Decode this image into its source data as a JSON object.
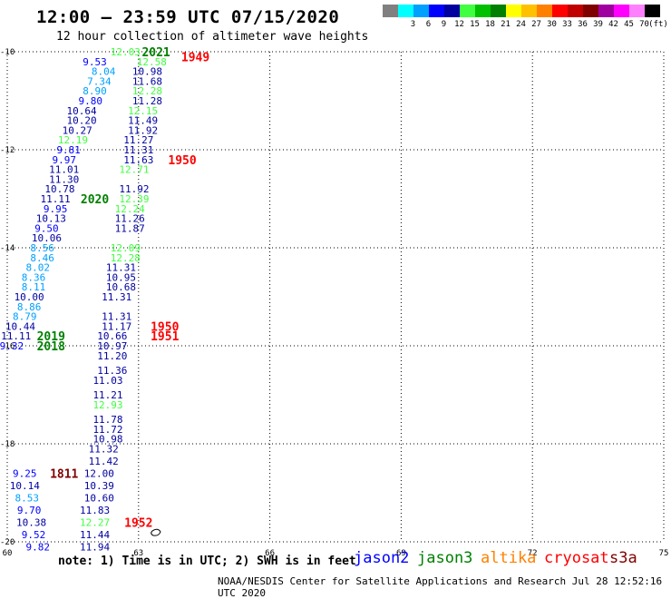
{
  "header": {
    "title": "12:00 – 23:59 UTC 07/15/2020",
    "subtitle": "12 hour collection of altimeter wave heights"
  },
  "legend": {
    "items": [
      {
        "label": "",
        "color": "#808080"
      },
      {
        "label": "3",
        "color": "#00ffff"
      },
      {
        "label": "6",
        "color": "#00a0ff"
      },
      {
        "label": "9",
        "color": "#0000ff"
      },
      {
        "label": "12",
        "color": "#0000a0"
      },
      {
        "label": "15",
        "color": "#40ff40"
      },
      {
        "label": "18",
        "color": "#00c000"
      },
      {
        "label": "21",
        "color": "#008000"
      },
      {
        "label": "24",
        "color": "#ffff00"
      },
      {
        "label": "27",
        "color": "#ffc000"
      },
      {
        "label": "30",
        "color": "#ff8000"
      },
      {
        "label": "33",
        "color": "#ff0000"
      },
      {
        "label": "36",
        "color": "#c00000"
      },
      {
        "label": "39",
        "color": "#800000"
      },
      {
        "label": "42",
        "color": "#a000a0"
      },
      {
        "label": "45",
        "color": "#ff00ff"
      },
      {
        "label": "70",
        "color": "#ff80ff"
      },
      {
        "label": "",
        "color": "#000000"
      }
    ],
    "unit": "(ft)"
  },
  "chart_data": {
    "type": "scatter",
    "xlim": [
      60,
      75
    ],
    "ylim": [
      -20,
      -10
    ],
    "x_ticks": [
      "60",
      "63",
      "66",
      "69",
      "72",
      "75"
    ],
    "y_ticks": [
      "-10",
      "-12",
      "-14",
      "-16",
      "-18",
      "-20"
    ],
    "grid": true,
    "points": [
      {
        "x": 62.7,
        "y": -10.0,
        "label": "12.03",
        "color": "#40ff40"
      },
      {
        "x": 62.0,
        "y": -10.2,
        "label": "9.53",
        "color": "#0000ff"
      },
      {
        "x": 63.3,
        "y": -10.2,
        "label": "12.58",
        "color": "#40ff40"
      },
      {
        "x": 62.2,
        "y": -10.4,
        "label": "8.04",
        "color": "#00a0ff"
      },
      {
        "x": 63.2,
        "y": -10.4,
        "label": "10.98",
        "color": "#0000a0"
      },
      {
        "x": 62.1,
        "y": -10.6,
        "label": "7.34",
        "color": "#00a0ff"
      },
      {
        "x": 63.2,
        "y": -10.6,
        "label": "11.68",
        "color": "#0000a0"
      },
      {
        "x": 62.0,
        "y": -10.8,
        "label": "8.90",
        "color": "#00a0ff"
      },
      {
        "x": 63.2,
        "y": -10.8,
        "label": "12.28",
        "color": "#40ff40"
      },
      {
        "x": 61.9,
        "y": -11.0,
        "label": "9.80",
        "color": "#0000ff"
      },
      {
        "x": 63.2,
        "y": -11.0,
        "label": "11.28",
        "color": "#0000a0"
      },
      {
        "x": 61.7,
        "y": -11.2,
        "label": "10.64",
        "color": "#0000a0"
      },
      {
        "x": 63.1,
        "y": -11.2,
        "label": "12.15",
        "color": "#40ff40"
      },
      {
        "x": 61.7,
        "y": -11.4,
        "label": "10.20",
        "color": "#0000a0"
      },
      {
        "x": 63.1,
        "y": -11.4,
        "label": "11.49",
        "color": "#0000a0"
      },
      {
        "x": 61.6,
        "y": -11.6,
        "label": "10.27",
        "color": "#0000a0"
      },
      {
        "x": 63.1,
        "y": -11.6,
        "label": "11.92",
        "color": "#0000a0"
      },
      {
        "x": 61.5,
        "y": -11.8,
        "label": "12.19",
        "color": "#40ff40"
      },
      {
        "x": 63.0,
        "y": -11.8,
        "label": "11.27",
        "color": "#0000a0"
      },
      {
        "x": 61.4,
        "y": -12.0,
        "label": "9.81",
        "color": "#0000ff"
      },
      {
        "x": 63.0,
        "y": -12.0,
        "label": "11.31",
        "color": "#0000a0"
      },
      {
        "x": 61.3,
        "y": -12.2,
        "label": "9.97",
        "color": "#0000ff"
      },
      {
        "x": 63.0,
        "y": -12.2,
        "label": "11.63",
        "color": "#0000a0"
      },
      {
        "x": 61.3,
        "y": -12.4,
        "label": "11.01",
        "color": "#0000a0"
      },
      {
        "x": 62.9,
        "y": -12.4,
        "label": "12.71",
        "color": "#40ff40"
      },
      {
        "x": 61.3,
        "y": -12.6,
        "label": "11.30",
        "color": "#0000a0"
      },
      {
        "x": 61.2,
        "y": -12.8,
        "label": "10.78",
        "color": "#0000a0"
      },
      {
        "x": 62.9,
        "y": -12.8,
        "label": "11.92",
        "color": "#0000a0"
      },
      {
        "x": 61.1,
        "y": -13.0,
        "label": "11.11",
        "color": "#0000a0"
      },
      {
        "x": 62.9,
        "y": -13.0,
        "label": "12.39",
        "color": "#40ff40"
      },
      {
        "x": 61.1,
        "y": -13.2,
        "label": "9.95",
        "color": "#0000ff"
      },
      {
        "x": 62.8,
        "y": -13.2,
        "label": "12.24",
        "color": "#40ff40"
      },
      {
        "x": 61.0,
        "y": -13.4,
        "label": "10.13",
        "color": "#0000a0"
      },
      {
        "x": 62.8,
        "y": -13.4,
        "label": "11.26",
        "color": "#0000a0"
      },
      {
        "x": 60.9,
        "y": -13.6,
        "label": "9.50",
        "color": "#0000ff"
      },
      {
        "x": 62.8,
        "y": -13.6,
        "label": "11.87",
        "color": "#0000a0"
      },
      {
        "x": 60.9,
        "y": -13.8,
        "label": "10.06",
        "color": "#0000a0"
      },
      {
        "x": 60.8,
        "y": -14.0,
        "label": "8.56",
        "color": "#00a0ff"
      },
      {
        "x": 62.7,
        "y": -14.0,
        "label": "12.09",
        "color": "#40ff40"
      },
      {
        "x": 60.8,
        "y": -14.2,
        "label": "8.46",
        "color": "#00a0ff"
      },
      {
        "x": 62.7,
        "y": -14.2,
        "label": "12.28",
        "color": "#40ff40"
      },
      {
        "x": 60.7,
        "y": -14.4,
        "label": "8.02",
        "color": "#00a0ff"
      },
      {
        "x": 62.6,
        "y": -14.4,
        "label": "11.31",
        "color": "#0000a0"
      },
      {
        "x": 60.6,
        "y": -14.6,
        "label": "8.36",
        "color": "#00a0ff"
      },
      {
        "x": 62.6,
        "y": -14.6,
        "label": "10.95",
        "color": "#0000a0"
      },
      {
        "x": 60.6,
        "y": -14.8,
        "label": "8.11",
        "color": "#00a0ff"
      },
      {
        "x": 62.6,
        "y": -14.8,
        "label": "10.68",
        "color": "#0000a0"
      },
      {
        "x": 60.5,
        "y": -15.0,
        "label": "10.00",
        "color": "#0000a0"
      },
      {
        "x": 62.5,
        "y": -15.0,
        "label": "11.31",
        "color": "#0000a0"
      },
      {
        "x": 60.5,
        "y": -15.2,
        "label": "8.86",
        "color": "#00a0ff"
      },
      {
        "x": 60.4,
        "y": -15.4,
        "label": "8.79",
        "color": "#00a0ff"
      },
      {
        "x": 62.5,
        "y": -15.4,
        "label": "11.31",
        "color": "#0000a0"
      },
      {
        "x": 60.3,
        "y": -15.6,
        "label": "10.44",
        "color": "#0000a0"
      },
      {
        "x": 62.5,
        "y": -15.6,
        "label": "11.17",
        "color": "#0000a0"
      },
      {
        "x": 60.2,
        "y": -15.8,
        "label": "11.11",
        "color": "#0000a0"
      },
      {
        "x": 62.4,
        "y": -15.8,
        "label": "10.66",
        "color": "#0000a0"
      },
      {
        "x": 60.1,
        "y": -16.0,
        "label": "9.32",
        "color": "#0000ff"
      },
      {
        "x": 62.4,
        "y": -16.0,
        "label": "10.97",
        "color": "#0000a0"
      },
      {
        "x": 62.4,
        "y": -16.2,
        "label": "11.20",
        "color": "#0000a0"
      },
      {
        "x": 62.4,
        "y": -16.5,
        "label": "11.36",
        "color": "#0000a0"
      },
      {
        "x": 62.3,
        "y": -16.7,
        "label": "11.03",
        "color": "#0000a0"
      },
      {
        "x": 62.3,
        "y": -17.0,
        "label": "11.21",
        "color": "#0000a0"
      },
      {
        "x": 62.3,
        "y": -17.2,
        "label": "12.93",
        "color": "#40ff40"
      },
      {
        "x": 62.3,
        "y": -17.5,
        "label": "11.78",
        "color": "#0000a0"
      },
      {
        "x": 62.3,
        "y": -17.7,
        "label": "11.72",
        "color": "#0000a0"
      },
      {
        "x": 62.3,
        "y": -17.9,
        "label": "10.98",
        "color": "#0000a0"
      },
      {
        "x": 62.2,
        "y": -18.1,
        "label": "11.32",
        "color": "#0000a0"
      },
      {
        "x": 62.2,
        "y": -18.35,
        "label": "11.42",
        "color": "#0000a0"
      },
      {
        "x": 60.4,
        "y": -18.6,
        "label": "9.25",
        "color": "#0000ff"
      },
      {
        "x": 62.1,
        "y": -18.6,
        "label": "12.00",
        "color": "#0000a0"
      },
      {
        "x": 60.4,
        "y": -18.85,
        "label": "10.14",
        "color": "#0000a0"
      },
      {
        "x": 62.1,
        "y": -18.85,
        "label": "10.39",
        "color": "#0000a0"
      },
      {
        "x": 60.45,
        "y": -19.1,
        "label": "8.53",
        "color": "#00a0ff"
      },
      {
        "x": 62.1,
        "y": -19.1,
        "label": "10.60",
        "color": "#0000a0"
      },
      {
        "x": 60.5,
        "y": -19.35,
        "label": "9.70",
        "color": "#0000ff"
      },
      {
        "x": 62.0,
        "y": -19.35,
        "label": "11.83",
        "color": "#0000a0"
      },
      {
        "x": 60.55,
        "y": -19.6,
        "label": "10.38",
        "color": "#0000a0"
      },
      {
        "x": 62.0,
        "y": -19.6,
        "label": "12.27",
        "color": "#40ff40"
      },
      {
        "x": 60.6,
        "y": -19.85,
        "label": "9.52",
        "color": "#0000ff"
      },
      {
        "x": 62.0,
        "y": -19.85,
        "label": "11.44",
        "color": "#0000a0"
      },
      {
        "x": 60.7,
        "y": -20.1,
        "label": "9.82",
        "color": "#0000ff"
      },
      {
        "x": 62.0,
        "y": -20.1,
        "label": "11.94",
        "color": "#0000a0"
      }
    ],
    "annotations": [
      {
        "x": 63.4,
        "y": -10.0,
        "label": "2021",
        "color": "#008000"
      },
      {
        "x": 64.3,
        "y": -10.1,
        "label": "1949",
        "color": "#ff0000"
      },
      {
        "x": 64.0,
        "y": -12.2,
        "label": "1950",
        "color": "#ff0000"
      },
      {
        "x": 62.0,
        "y": -13.0,
        "label": "2020",
        "color": "#008000"
      },
      {
        "x": 63.6,
        "y": -15.6,
        "label": "1950",
        "color": "#ff0000"
      },
      {
        "x": 63.6,
        "y": -15.8,
        "label": "1951",
        "color": "#ff0000"
      },
      {
        "x": 61.0,
        "y": -15.8,
        "label": "2019",
        "color": "#008000"
      },
      {
        "x": 61.0,
        "y": -16.0,
        "label": "2018",
        "color": "#008000"
      },
      {
        "x": 61.3,
        "y": -18.6,
        "label": "1811",
        "color": "#800000"
      },
      {
        "x": 63.0,
        "y": -19.6,
        "label": "1952",
        "color": "#ff0000"
      }
    ]
  },
  "footer": {
    "note": "note: 1) Time is in UTC; 2) SWH is in feet",
    "satellites": [
      {
        "label": "jason2",
        "color": "#0000ff"
      },
      {
        "label": "jason3",
        "color": "#008000"
      },
      {
        "label": "altika",
        "color": "#ff8000"
      },
      {
        "label": "cryosat",
        "color": "#ff0000"
      },
      {
        "label": "s3a",
        "color": "#800000"
      }
    ],
    "credit": "NOAA/NESDIS Center for Satellite Applications and Research    Jul 28 12:52:16 UTC 2020"
  }
}
